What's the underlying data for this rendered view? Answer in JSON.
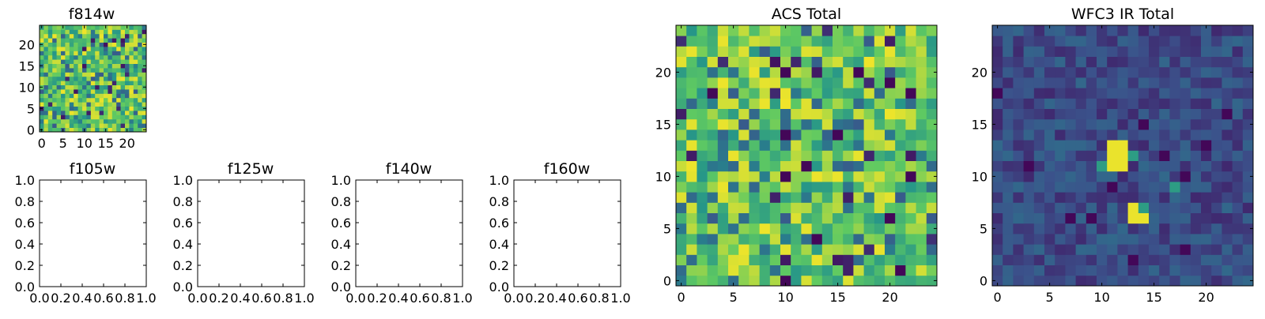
{
  "figure": {
    "background": "#ffffff"
  },
  "colormap": [
    "#440154",
    "#3b528b",
    "#21918c",
    "#5ec962",
    "#fde725"
  ],
  "chart_data": [
    {
      "id": "f814w",
      "type": "heatmap",
      "title": "f814w",
      "grid_size": 25,
      "xticks": [
        "0",
        "5",
        "10",
        "15",
        "20"
      ],
      "yticks": [
        "0",
        "5",
        "10",
        "15",
        "20"
      ],
      "xlim": [
        -0.5,
        24.5
      ],
      "ylim": [
        -0.5,
        24.5
      ],
      "value_range": [
        0,
        1
      ],
      "pattern": "uniform_noise_mostly_green_yellow",
      "seed": 814
    },
    {
      "id": "f105w",
      "type": "empty",
      "title": "f105w",
      "xticks": [
        "0.0",
        "0.2",
        "0.4",
        "0.6",
        "0.8",
        "1.0"
      ],
      "yticks": [
        "0.0",
        "0.2",
        "0.4",
        "0.6",
        "0.8",
        "1.0"
      ],
      "xlim": [
        0,
        1
      ],
      "ylim": [
        0,
        1
      ]
    },
    {
      "id": "f125w",
      "type": "empty",
      "title": "f125w",
      "xticks": [
        "0.0",
        "0.2",
        "0.4",
        "0.6",
        "0.8",
        "1.0"
      ],
      "yticks": [
        "0.0",
        "0.2",
        "0.4",
        "0.6",
        "0.8",
        "1.0"
      ],
      "xlim": [
        0,
        1
      ],
      "ylim": [
        0,
        1
      ]
    },
    {
      "id": "f140w",
      "type": "empty",
      "title": "f140w",
      "xticks": [
        "0.0",
        "0.2",
        "0.4",
        "0.6",
        "0.8",
        "1.0"
      ],
      "yticks": [
        "0.0",
        "0.2",
        "0.4",
        "0.6",
        "0.8",
        "1.0"
      ],
      "xlim": [
        0,
        1
      ],
      "ylim": [
        0,
        1
      ]
    },
    {
      "id": "f160w",
      "type": "empty",
      "title": "f160w",
      "xticks": [
        "0.0",
        "0.2",
        "0.4",
        "0.6",
        "0.8",
        "1.0"
      ],
      "yticks": [
        "0.0",
        "0.2",
        "0.4",
        "0.6",
        "0.8",
        "1.0"
      ],
      "xlim": [
        0,
        1
      ],
      "ylim": [
        0,
        1
      ]
    },
    {
      "id": "acs-total",
      "type": "heatmap",
      "title": "ACS Total",
      "grid_size": 25,
      "xticks": [
        "0",
        "5",
        "10",
        "15",
        "20"
      ],
      "yticks": [
        "0",
        "5",
        "10",
        "15",
        "20"
      ],
      "xlim": [
        -0.5,
        24.5
      ],
      "ylim": [
        -0.5,
        24.5
      ],
      "value_range": [
        0,
        1
      ],
      "pattern": "uniform_noise_mostly_green_yellow",
      "seed": 2101,
      "dark_pixels": [
        [
          10,
          0
        ],
        [
          21,
          1
        ],
        [
          13,
          4
        ],
        [
          20,
          6
        ],
        [
          10,
          10
        ],
        [
          22,
          10
        ],
        [
          12,
          11
        ],
        [
          15,
          14
        ],
        [
          10,
          14
        ],
        [
          3,
          18
        ],
        [
          22,
          18
        ],
        [
          10,
          20
        ],
        [
          17,
          20
        ],
        [
          20,
          19
        ]
      ]
    },
    {
      "id": "wfc3-ir-total",
      "type": "heatmap",
      "title": "WFC3 IR Total",
      "grid_size": 25,
      "xticks": [
        "0",
        "5",
        "10",
        "15",
        "20"
      ],
      "yticks": [
        "0",
        "5",
        "10",
        "15",
        "20"
      ],
      "xlim": [
        -0.5,
        24.5
      ],
      "ylim": [
        -0.5,
        24.5
      ],
      "value_range": [
        0,
        1
      ],
      "pattern": "low_noise_blue_with_bright_sources",
      "seed": 3160,
      "bright_pixels": [
        [
          11,
          11
        ],
        [
          12,
          11
        ],
        [
          11,
          12
        ],
        [
          12,
          12
        ],
        [
          11,
          13
        ],
        [
          12,
          13
        ],
        [
          13,
          6
        ],
        [
          14,
          6
        ],
        [
          13,
          7
        ]
      ],
      "medium_pixels": [
        [
          14,
          7
        ],
        [
          13,
          12
        ],
        [
          17,
          9
        ],
        [
          10,
          11
        ]
      ],
      "dark_pixels": [
        [
          3,
          11
        ],
        [
          18,
          3
        ],
        [
          13,
          2
        ],
        [
          7,
          6
        ],
        [
          0,
          18
        ],
        [
          18,
          10
        ],
        [
          11,
          9
        ],
        [
          14,
          15
        ],
        [
          9,
          6
        ],
        [
          22,
          16
        ],
        [
          16,
          12
        ],
        [
          20,
          13
        ]
      ]
    }
  ]
}
